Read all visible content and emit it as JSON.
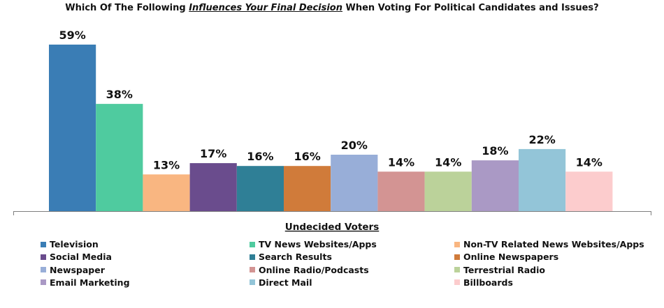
{
  "chart_data": {
    "type": "bar",
    "title": {
      "before": "Which Of The Following ",
      "emphasis": "Influences Your Final Decision",
      "after": " When Voting For Political Candidates and Issues?"
    },
    "group_label": "Undecided Voters",
    "ylim": [
      0,
      65
    ],
    "value_suffix": "%",
    "series": [
      {
        "name": "Television",
        "value": 59,
        "color": "#3A7DB5"
      },
      {
        "name": "TV News Websites/Apps",
        "value": 38,
        "color": "#4FCB9F"
      },
      {
        "name": "Non-TV Related News Websites/Apps",
        "value": 13,
        "color": "#F9B681"
      },
      {
        "name": "Social Media",
        "value": 17,
        "color": "#6A4C8D"
      },
      {
        "name": "Search Results",
        "value": 16,
        "color": "#2F7F96"
      },
      {
        "name": "Online Newspapers",
        "value": 16,
        "color": "#D07B3A"
      },
      {
        "name": "Newspaper",
        "value": 20,
        "color": "#98AED8"
      },
      {
        "name": "Online Radio/Podcasts",
        "value": 14,
        "color": "#D39493"
      },
      {
        "name": "Terrestrial Radio",
        "value": 14,
        "color": "#BBD29A"
      },
      {
        "name": "Email Marketing",
        "value": 18,
        "color": "#AA99C5"
      },
      {
        "name": "Direct Mail",
        "value": 22,
        "color": "#93C5D8"
      },
      {
        "name": "Billboards",
        "value": 14,
        "color": "#FCCCCD"
      }
    ]
  }
}
